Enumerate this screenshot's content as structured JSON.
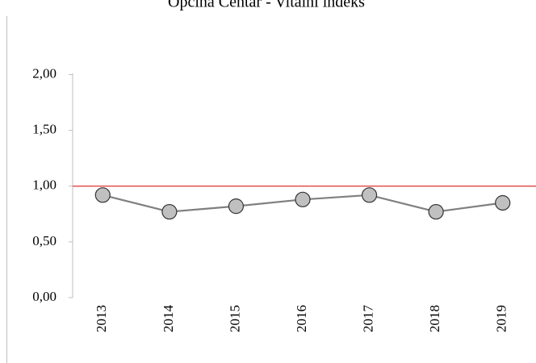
{
  "chart_data": {
    "type": "line",
    "title": "Općina Centar - Vitalni indeks",
    "categories": [
      "2013",
      "2014",
      "2015",
      "2016",
      "2017",
      "2018",
      "2019"
    ],
    "series": [
      {
        "name": "Vitalni indeks",
        "color": "#7f7f7f",
        "marker_color": "#c0c0c0",
        "values": [
          0.92,
          0.77,
          0.82,
          0.88,
          0.92,
          0.77,
          0.85
        ]
      }
    ],
    "ylim": [
      0,
      2.3
    ],
    "yticks": [
      {
        "value": 0,
        "label": "0,00"
      },
      {
        "value": 0.5,
        "label": "0,50"
      },
      {
        "value": 1,
        "label": "1,00"
      },
      {
        "value": 1.5,
        "label": "1,50"
      },
      {
        "value": 2,
        "label": "2,00"
      }
    ],
    "reference_line": {
      "value": 1,
      "color": "#e03030"
    },
    "grid": false,
    "legend": false
  }
}
